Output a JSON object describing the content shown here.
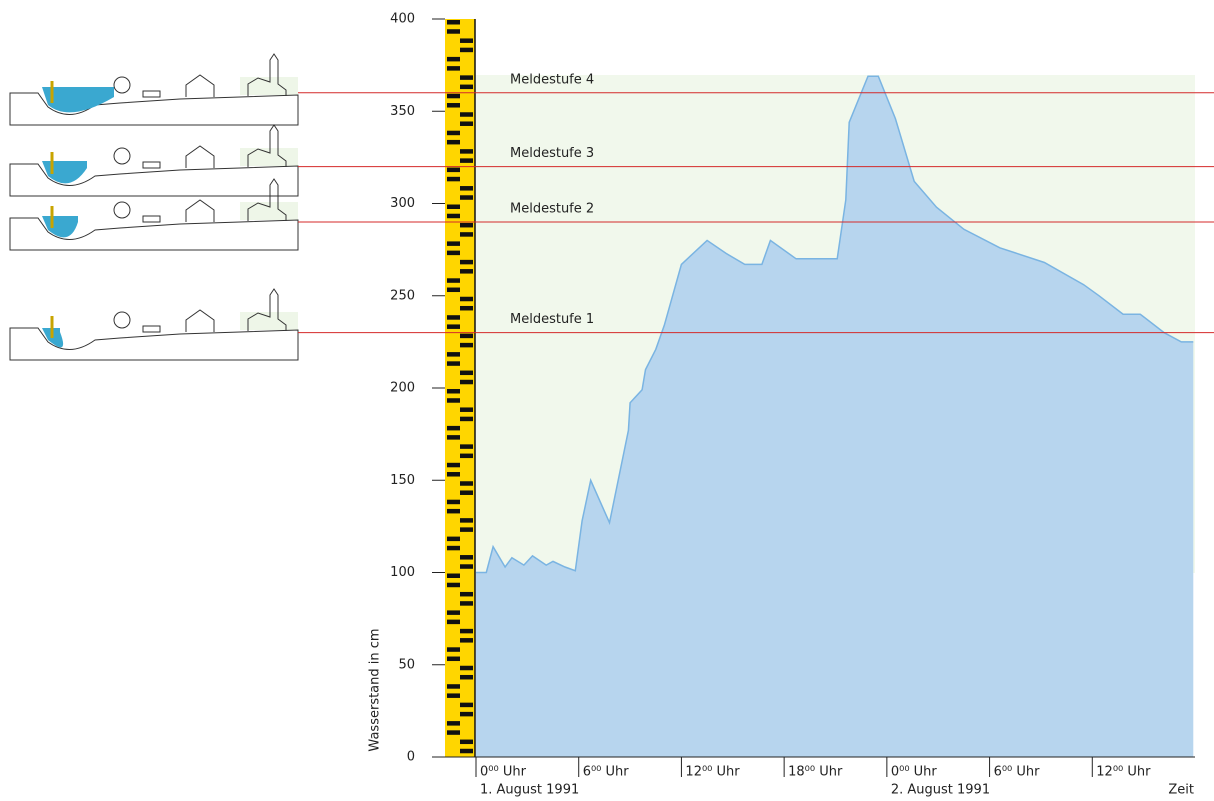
{
  "chart_data": {
    "type": "area",
    "y_label": "Wasserstand in cm",
    "x_label": "Zeit",
    "color": "#b7d5ee",
    "line_color": "#7ab4e2",
    "x": [
      0,
      0.6,
      1,
      1.7,
      2.1,
      2.8,
      3.3,
      4.1,
      4.5,
      5.2,
      5.8,
      6.2,
      6.7,
      7.8,
      8.9,
      9.0,
      9.7,
      9.9,
      10.5,
      11,
      12,
      13.5,
      14.6,
      15.7,
      16.7,
      17.2,
      18.7,
      21.1,
      21.6,
      21.8,
      22.9,
      23.5,
      24.5,
      25.6,
      26.9,
      28.5,
      30.6,
      33.2,
      35.5,
      36.4,
      37.8,
      38.8,
      40.2,
      41.2,
      41.9
    ],
    "values": [
      100,
      100,
      114,
      103,
      108,
      104,
      109,
      104,
      106,
      103,
      101,
      128,
      150,
      127,
      177,
      192,
      199,
      210,
      221,
      234,
      267,
      280,
      273,
      267,
      267,
      280,
      270,
      270,
      302,
      344,
      369,
      369,
      346,
      312,
      298,
      286,
      276,
      268,
      256,
      250,
      240,
      240,
      230,
      225,
      225
    ],
    "xlim": [
      0,
      42
    ],
    "xticks": [
      {
        "value": 0,
        "label": "0⁰⁰ Uhr"
      },
      {
        "value": 6,
        "label": "6⁰⁰ Uhr"
      },
      {
        "value": 12,
        "label": "12⁰⁰ Uhr"
      },
      {
        "value": 18,
        "label": "18⁰⁰ Uhr"
      },
      {
        "value": 24,
        "label": "0⁰⁰ Uhr"
      },
      {
        "value": 30,
        "label": "6⁰⁰ Uhr"
      },
      {
        "value": 36,
        "label": "12⁰⁰ Uhr"
      }
    ],
    "date_labels": [
      {
        "value": 0,
        "label": "1. August 1991"
      },
      {
        "value": 24,
        "label": "2. August 1991"
      }
    ],
    "ylim": [
      0,
      400
    ],
    "yticks": [
      0,
      50,
      100,
      150,
      200,
      250,
      300,
      350,
      400
    ],
    "thresholds": [
      {
        "label": "Meldestufe 1",
        "value": 230
      },
      {
        "label": "Meldestufe 2",
        "value": 290
      },
      {
        "label": "Meldestufe 3",
        "value": 320
      },
      {
        "label": "Meldestufe 4",
        "value": 360
      }
    ],
    "threshold_color": "#d42a2a"
  }
}
